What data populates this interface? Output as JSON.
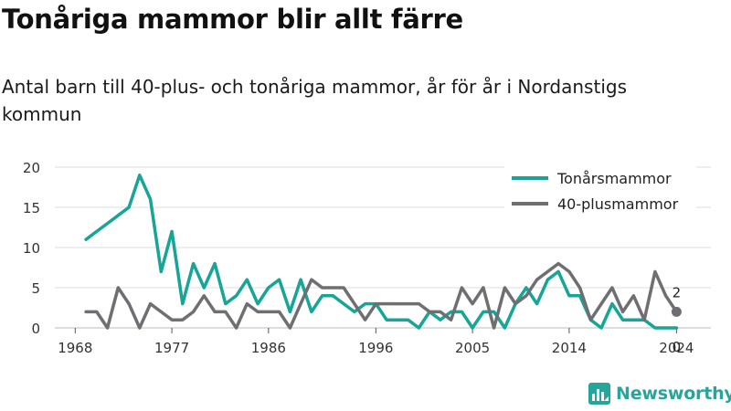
{
  "title": "Tonåriga mammor blir allt färre",
  "subtitle": "Antal barn till 40-plus- och tonåriga mammor, år för år i Nordanstigs kommun",
  "brand": {
    "name": "Newsworthy",
    "icon": "newsworthy-logo-icon",
    "color": "#26a69a"
  },
  "colors": {
    "teen": "#16a596",
    "forty": "#6e6e73",
    "grid": "#dddddd",
    "text": "#333333"
  },
  "chart_data": {
    "type": "line",
    "title": "Tonåriga mammor blir allt färre",
    "subtitle": "Antal barn till 40-plus- och tonåriga mammor, år för år i Nordanstigs kommun",
    "xlabel": "",
    "ylabel": "",
    "x_ticks": [
      1968,
      1977,
      1986,
      1996,
      2005,
      2014,
      2024
    ],
    "x_tick_labels": [
      "1968",
      "1977",
      "1986",
      "1996",
      "2005",
      "2014",
      "2024"
    ],
    "y_ticks": [
      0,
      5,
      10,
      15,
      20
    ],
    "ylim": [
      0,
      20
    ],
    "grid": true,
    "legend_position": "top-right",
    "series": [
      {
        "name": "Tonårsmammor",
        "color": "#16a596",
        "x": [
          1969,
          1970,
          1971,
          1972,
          1973,
          1974,
          1975,
          1976,
          1977,
          1978,
          1979,
          1980,
          1981,
          1982,
          1983,
          1984,
          1985,
          1986,
          1987,
          1988,
          1989,
          1990,
          1991,
          1992,
          1993,
          1994,
          1995,
          1996,
          1997,
          1998,
          1999,
          2000,
          2001,
          2002,
          2003,
          2004,
          2005,
          2006,
          2007,
          2008,
          2009,
          2010,
          2011,
          2012,
          2013,
          2014,
          2015,
          2016,
          2017,
          2018,
          2019,
          2020,
          2021,
          2022,
          2023,
          2024
        ],
        "values": [
          11,
          12,
          13,
          14,
          15,
          19,
          16,
          7,
          12,
          3,
          8,
          5,
          8,
          3,
          4,
          6,
          3,
          5,
          6,
          2,
          6,
          2,
          4,
          4,
          3,
          2,
          3,
          3,
          1,
          1,
          1,
          0,
          2,
          1,
          2,
          2,
          0,
          2,
          2,
          0,
          3,
          5,
          3,
          6,
          7,
          4,
          4,
          1,
          0,
          3,
          1,
          1,
          1,
          0,
          0,
          0
        ],
        "end_label": "0"
      },
      {
        "name": "40-plusmammor",
        "color": "#6e6e73",
        "x": [
          1969,
          1970,
          1971,
          1972,
          1973,
          1974,
          1975,
          1976,
          1977,
          1978,
          1979,
          1980,
          1981,
          1982,
          1983,
          1984,
          1985,
          1986,
          1987,
          1988,
          1989,
          1990,
          1991,
          1992,
          1993,
          1994,
          1995,
          1996,
          1997,
          1998,
          1999,
          2000,
          2001,
          2002,
          2003,
          2004,
          2005,
          2006,
          2007,
          2008,
          2009,
          2010,
          2011,
          2012,
          2013,
          2014,
          2015,
          2016,
          2017,
          2018,
          2019,
          2020,
          2021,
          2022,
          2023,
          2024
        ],
        "values": [
          2,
          2,
          0,
          5,
          3,
          0,
          3,
          2,
          1,
          1,
          2,
          4,
          2,
          2,
          0,
          3,
          2,
          2,
          2,
          0,
          3,
          6,
          5,
          5,
          5,
          3,
          1,
          3,
          3,
          3,
          3,
          3,
          2,
          2,
          1,
          5,
          3,
          5,
          0,
          5,
          3,
          4,
          6,
          7,
          8,
          7,
          5,
          1,
          3,
          5,
          2,
          4,
          1,
          7,
          4,
          2
        ],
        "end_label": "2"
      }
    ]
  }
}
